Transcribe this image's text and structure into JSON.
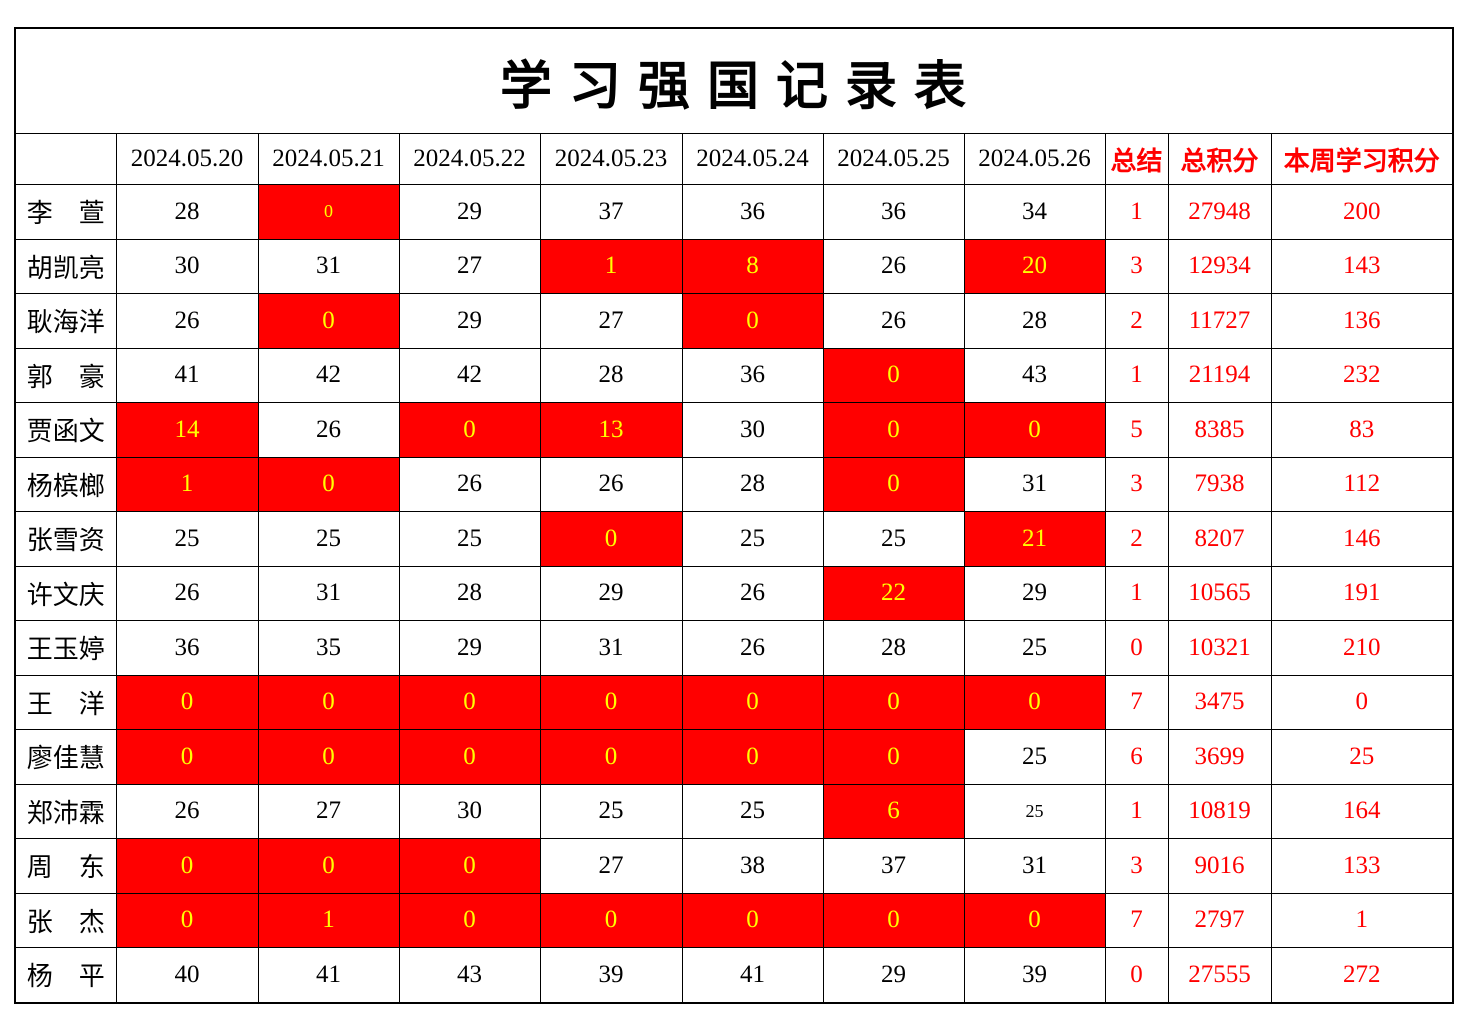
{
  "title": "学 习 强 国 记 录 表",
  "colors": {
    "highlight_bg": "#FF0000",
    "highlight_text": "#FFFF00",
    "accent_text": "#FF0000"
  },
  "table": {
    "columns": [
      {
        "label": "",
        "red": false
      },
      {
        "label": "2024.05.20",
        "red": false
      },
      {
        "label": "2024.05.21",
        "red": false
      },
      {
        "label": "2024.05.22",
        "red": false
      },
      {
        "label": "2024.05.23",
        "red": false
      },
      {
        "label": "2024.05.24",
        "red": false
      },
      {
        "label": "2024.05.25",
        "red": false
      },
      {
        "label": "2024.05.26",
        "red": false
      },
      {
        "label": "总结",
        "red": true
      },
      {
        "label": "总积分",
        "red": true
      },
      {
        "label": "本周学习积分",
        "red": true
      }
    ],
    "rows": [
      {
        "name": "李　萱",
        "cells": [
          {
            "v": "28",
            "hl": false
          },
          {
            "v": "0",
            "hl": true,
            "small": true
          },
          {
            "v": "29",
            "hl": false
          },
          {
            "v": "37",
            "hl": false
          },
          {
            "v": "36",
            "hl": false
          },
          {
            "v": "36",
            "hl": false
          },
          {
            "v": "34",
            "hl": false
          }
        ],
        "summary": "1",
        "total": "27948",
        "week": "200"
      },
      {
        "name": "胡凯亮",
        "cells": [
          {
            "v": "30",
            "hl": false
          },
          {
            "v": "31",
            "hl": false
          },
          {
            "v": "27",
            "hl": false
          },
          {
            "v": "1",
            "hl": true
          },
          {
            "v": "8",
            "hl": true
          },
          {
            "v": "26",
            "hl": false
          },
          {
            "v": "20",
            "hl": true
          }
        ],
        "summary": "3",
        "total": "12934",
        "week": "143"
      },
      {
        "name": "耿海洋",
        "cells": [
          {
            "v": "26",
            "hl": false
          },
          {
            "v": "0",
            "hl": true
          },
          {
            "v": "29",
            "hl": false
          },
          {
            "v": "27",
            "hl": false
          },
          {
            "v": "0",
            "hl": true
          },
          {
            "v": "26",
            "hl": false
          },
          {
            "v": "28",
            "hl": false
          }
        ],
        "summary": "2",
        "total": "11727",
        "week": "136"
      },
      {
        "name": "郭　豪",
        "cells": [
          {
            "v": "41",
            "hl": false
          },
          {
            "v": "42",
            "hl": false
          },
          {
            "v": "42",
            "hl": false
          },
          {
            "v": "28",
            "hl": false
          },
          {
            "v": "36",
            "hl": false
          },
          {
            "v": "0",
            "hl": true
          },
          {
            "v": "43",
            "hl": false
          }
        ],
        "summary": "1",
        "total": "21194",
        "week": "232"
      },
      {
        "name": "贾函文",
        "cells": [
          {
            "v": "14",
            "hl": true
          },
          {
            "v": "26",
            "hl": false
          },
          {
            "v": "0",
            "hl": true
          },
          {
            "v": "13",
            "hl": true
          },
          {
            "v": "30",
            "hl": false
          },
          {
            "v": "0",
            "hl": true
          },
          {
            "v": "0",
            "hl": true
          }
        ],
        "summary": "5",
        "total": "8385",
        "week": "83"
      },
      {
        "name": "杨槟榔",
        "cells": [
          {
            "v": "1",
            "hl": true
          },
          {
            "v": "0",
            "hl": true
          },
          {
            "v": "26",
            "hl": false
          },
          {
            "v": "26",
            "hl": false
          },
          {
            "v": "28",
            "hl": false
          },
          {
            "v": "0",
            "hl": true
          },
          {
            "v": "31",
            "hl": false
          }
        ],
        "summary": "3",
        "total": "7938",
        "week": "112"
      },
      {
        "name": "张雪资",
        "cells": [
          {
            "v": "25",
            "hl": false
          },
          {
            "v": "25",
            "hl": false
          },
          {
            "v": "25",
            "hl": false
          },
          {
            "v": "0",
            "hl": true
          },
          {
            "v": "25",
            "hl": false
          },
          {
            "v": "25",
            "hl": false
          },
          {
            "v": "21",
            "hl": true
          }
        ],
        "summary": "2",
        "total": "8207",
        "week": "146"
      },
      {
        "name": "许文庆",
        "cells": [
          {
            "v": "26",
            "hl": false
          },
          {
            "v": "31",
            "hl": false
          },
          {
            "v": "28",
            "hl": false
          },
          {
            "v": "29",
            "hl": false
          },
          {
            "v": "26",
            "hl": false
          },
          {
            "v": "22",
            "hl": true
          },
          {
            "v": "29",
            "hl": false
          }
        ],
        "summary": "1",
        "total": "10565",
        "week": "191"
      },
      {
        "name": "王玉婷",
        "cells": [
          {
            "v": "36",
            "hl": false
          },
          {
            "v": "35",
            "hl": false
          },
          {
            "v": "29",
            "hl": false
          },
          {
            "v": "31",
            "hl": false
          },
          {
            "v": "26",
            "hl": false
          },
          {
            "v": "28",
            "hl": false
          },
          {
            "v": "25",
            "hl": false
          }
        ],
        "summary": "0",
        "total": "10321",
        "week": "210"
      },
      {
        "name": "王　洋",
        "cells": [
          {
            "v": "0",
            "hl": true
          },
          {
            "v": "0",
            "hl": true
          },
          {
            "v": "0",
            "hl": true
          },
          {
            "v": "0",
            "hl": true
          },
          {
            "v": "0",
            "hl": true
          },
          {
            "v": "0",
            "hl": true
          },
          {
            "v": "0",
            "hl": true
          }
        ],
        "summary": "7",
        "total": "3475",
        "week": "0"
      },
      {
        "name": "廖佳慧",
        "cells": [
          {
            "v": "0",
            "hl": true
          },
          {
            "v": "0",
            "hl": true
          },
          {
            "v": "0",
            "hl": true
          },
          {
            "v": "0",
            "hl": true
          },
          {
            "v": "0",
            "hl": true
          },
          {
            "v": "0",
            "hl": true
          },
          {
            "v": "25",
            "hl": false
          }
        ],
        "summary": "6",
        "total": "3699",
        "week": "25"
      },
      {
        "name": "郑沛霖",
        "cells": [
          {
            "v": "26",
            "hl": false
          },
          {
            "v": "27",
            "hl": false
          },
          {
            "v": "30",
            "hl": false
          },
          {
            "v": "25",
            "hl": false
          },
          {
            "v": "25",
            "hl": false
          },
          {
            "v": "6",
            "hl": true
          },
          {
            "v": "25",
            "hl": false,
            "small": true
          }
        ],
        "summary": "1",
        "total": "10819",
        "week": "164"
      },
      {
        "name": "周　东",
        "cells": [
          {
            "v": "0",
            "hl": true
          },
          {
            "v": "0",
            "hl": true
          },
          {
            "v": "0",
            "hl": true
          },
          {
            "v": "27",
            "hl": false
          },
          {
            "v": "38",
            "hl": false
          },
          {
            "v": "37",
            "hl": false
          },
          {
            "v": "31",
            "hl": false
          }
        ],
        "summary": "3",
        "total": "9016",
        "week": "133"
      },
      {
        "name": "张　杰",
        "cells": [
          {
            "v": "0",
            "hl": true
          },
          {
            "v": "1",
            "hl": true
          },
          {
            "v": "0",
            "hl": true
          },
          {
            "v": "0",
            "hl": true
          },
          {
            "v": "0",
            "hl": true
          },
          {
            "v": "0",
            "hl": true
          },
          {
            "v": "0",
            "hl": true
          }
        ],
        "summary": "7",
        "total": "2797",
        "week": "1"
      },
      {
        "name": "杨　平",
        "cells": [
          {
            "v": "40",
            "hl": false
          },
          {
            "v": "41",
            "hl": false
          },
          {
            "v": "43",
            "hl": false
          },
          {
            "v": "39",
            "hl": false
          },
          {
            "v": "41",
            "hl": false
          },
          {
            "v": "29",
            "hl": false
          },
          {
            "v": "39",
            "hl": false
          }
        ],
        "summary": "0",
        "total": "27555",
        "week": "272"
      }
    ]
  }
}
